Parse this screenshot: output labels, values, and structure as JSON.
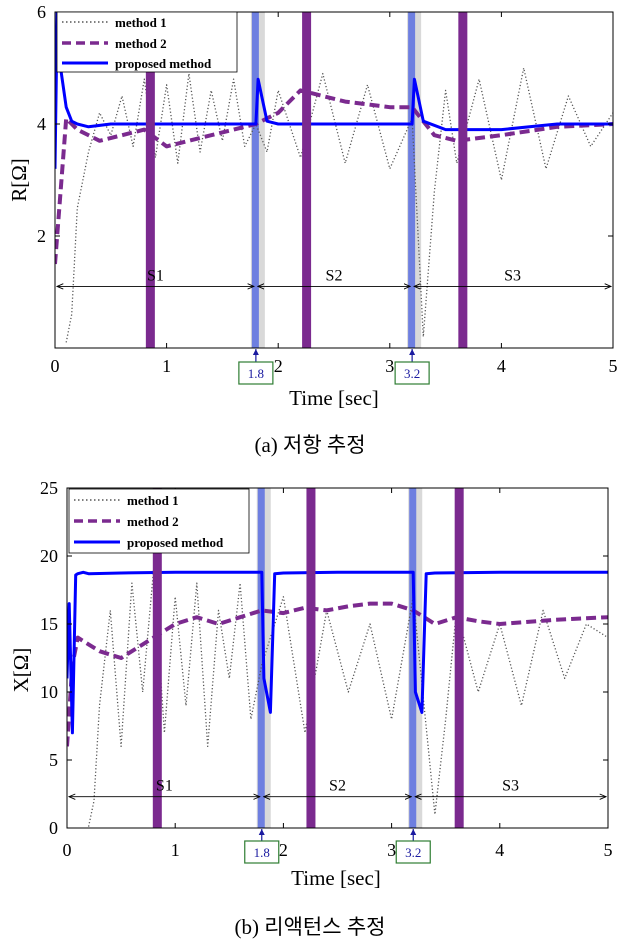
{
  "chart_data": [
    {
      "type": "line",
      "caption": "(a)  저항 추정",
      "ylabel": "R[Ω]",
      "xlabel": "Time [sec]",
      "xlim": [
        0,
        5
      ],
      "ylim": [
        0,
        6
      ],
      "xticks": [
        "0",
        "1",
        "2",
        "3",
        "4",
        "5"
      ],
      "yticks": [
        "2",
        "4",
        "6"
      ],
      "legend": {
        "position": "top-left",
        "entries": [
          "method 1",
          "method 2",
          "proposed method"
        ]
      },
      "segments": [
        "S1",
        "S2",
        "S3"
      ],
      "segment_arrow_y": 1.1,
      "markers": [
        "1.8",
        "3.2"
      ],
      "series": [
        {
          "name": "method 1",
          "style": "dotted",
          "color": "#555555",
          "x": [
            0.1,
            0.15,
            0.2,
            0.3,
            0.4,
            0.5,
            0.6,
            0.7,
            0.8,
            0.9,
            1.0,
            1.1,
            1.2,
            1.3,
            1.4,
            1.5,
            1.6,
            1.7,
            1.8,
            1.9,
            2.0,
            2.2,
            2.4,
            2.6,
            2.8,
            3.0,
            3.2,
            3.3,
            3.4,
            3.5,
            3.6,
            3.8,
            4.0,
            4.2,
            4.4,
            4.6,
            4.8,
            5.0
          ],
          "y": [
            0.1,
            0.6,
            2.5,
            3.5,
            4.2,
            3.8,
            4.5,
            3.6,
            4.8,
            3.4,
            4.7,
            3.3,
            4.9,
            3.5,
            4.6,
            3.7,
            4.8,
            3.6,
            4.0,
            3.5,
            4.6,
            3.4,
            4.9,
            3.3,
            4.7,
            3.2,
            4.1,
            0.2,
            2.8,
            4.6,
            3.3,
            4.8,
            3.0,
            5.0,
            3.2,
            4.5,
            3.6,
            4.2
          ]
        },
        {
          "name": "method 2",
          "style": "dashed",
          "color": "#7B2A8F",
          "x": [
            0.0,
            0.1,
            0.2,
            0.4,
            0.6,
            0.8,
            1.0,
            1.2,
            1.4,
            1.6,
            1.8,
            1.9,
            2.0,
            2.2,
            2.4,
            2.6,
            2.8,
            3.0,
            3.2,
            3.4,
            3.6,
            3.8,
            4.0,
            4.5,
            5.0
          ],
          "y": [
            1.5,
            4.1,
            3.9,
            3.7,
            3.8,
            3.9,
            3.6,
            3.7,
            3.8,
            3.9,
            4.0,
            4.1,
            4.2,
            4.6,
            4.5,
            4.4,
            4.35,
            4.3,
            4.3,
            3.8,
            3.7,
            3.75,
            3.8,
            3.95,
            4.0
          ]
        },
        {
          "name": "proposed method",
          "style": "solid",
          "color": "#0000FF",
          "x": [
            0.0,
            0.02,
            0.05,
            0.1,
            0.15,
            0.2,
            0.3,
            0.5,
            1.0,
            1.5,
            1.8,
            1.82,
            1.9,
            2.0,
            2.5,
            3.0,
            3.2,
            3.22,
            3.3,
            3.5,
            4.0,
            4.5,
            5.0
          ],
          "y": [
            3.2,
            6.0,
            5.0,
            4.3,
            4.05,
            4.0,
            3.95,
            4.0,
            4.0,
            4.0,
            4.0,
            4.8,
            4.05,
            4.0,
            4.0,
            4.0,
            4.0,
            4.8,
            4.05,
            3.9,
            3.9,
            4.0,
            4.0
          ]
        }
      ]
    },
    {
      "type": "line",
      "caption": "(b)  리액턴스 추정",
      "ylabel": "X[Ω]",
      "xlabel": "Time [sec]",
      "xlim": [
        0,
        5
      ],
      "ylim": [
        0,
        25
      ],
      "xticks": [
        "0",
        "1",
        "2",
        "3",
        "4",
        "5"
      ],
      "yticks": [
        "0",
        "5",
        "10",
        "15",
        "20",
        "25"
      ],
      "legend": {
        "position": "top-left",
        "entries": [
          "method 1",
          "method 2",
          "proposed method"
        ]
      },
      "segments": [
        "S1",
        "S2",
        "S3"
      ],
      "segment_arrow_y": 2.3,
      "markers": [
        "1.8",
        "3.2"
      ],
      "series": [
        {
          "name": "method 1",
          "style": "dotted",
          "color": "#555555",
          "x": [
            0.2,
            0.25,
            0.3,
            0.4,
            0.5,
            0.6,
            0.7,
            0.8,
            0.9,
            1.0,
            1.1,
            1.2,
            1.3,
            1.4,
            1.5,
            1.6,
            1.7,
            1.8,
            2.0,
            2.2,
            2.4,
            2.6,
            2.8,
            3.0,
            3.2,
            3.4,
            3.5,
            3.6,
            3.8,
            4.0,
            4.2,
            4.4,
            4.6,
            4.8,
            5.0
          ],
          "y": [
            0.1,
            2.0,
            9.0,
            16.0,
            6.0,
            18.0,
            10.0,
            19.0,
            7.0,
            17.0,
            9.0,
            18.0,
            6.0,
            16.0,
            11.0,
            18.0,
            8.0,
            12.0,
            17.0,
            7.0,
            16.0,
            10.0,
            15.0,
            8.0,
            17.0,
            1.0,
            8.0,
            16.0,
            10.0,
            15.0,
            9.0,
            16.0,
            11.0,
            15.0,
            14.0
          ]
        },
        {
          "name": "method 2",
          "style": "dashed",
          "color": "#7B2A8F",
          "x": [
            0.0,
            0.05,
            0.1,
            0.2,
            0.3,
            0.5,
            0.7,
            1.0,
            1.2,
            1.4,
            1.6,
            1.8,
            2.0,
            2.2,
            2.4,
            2.6,
            2.8,
            3.0,
            3.2,
            3.4,
            3.6,
            3.8,
            4.0,
            4.5,
            5.0
          ],
          "y": [
            6.0,
            12.0,
            14.0,
            13.5,
            13.0,
            12.5,
            13.5,
            15.0,
            15.5,
            15.0,
            15.5,
            16.0,
            15.8,
            16.2,
            16.0,
            16.3,
            16.5,
            16.5,
            16.0,
            15.0,
            15.5,
            15.2,
            15.0,
            15.3,
            15.5
          ]
        },
        {
          "name": "proposed method",
          "style": "solid",
          "color": "#0000FF",
          "x": [
            0.0,
            0.02,
            0.05,
            0.08,
            0.1,
            0.15,
            0.2,
            0.5,
            1.0,
            1.5,
            1.8,
            1.82,
            1.88,
            1.92,
            2.0,
            2.5,
            3.0,
            3.2,
            3.22,
            3.28,
            3.32,
            3.4,
            4.0,
            4.5,
            5.0
          ],
          "y": [
            11.0,
            16.5,
            7.0,
            18.6,
            18.7,
            18.8,
            18.7,
            18.75,
            18.8,
            18.8,
            18.8,
            11.0,
            8.5,
            18.7,
            18.75,
            18.8,
            18.8,
            18.8,
            10.0,
            8.5,
            18.7,
            18.75,
            18.8,
            18.8,
            18.8
          ]
        }
      ]
    }
  ]
}
